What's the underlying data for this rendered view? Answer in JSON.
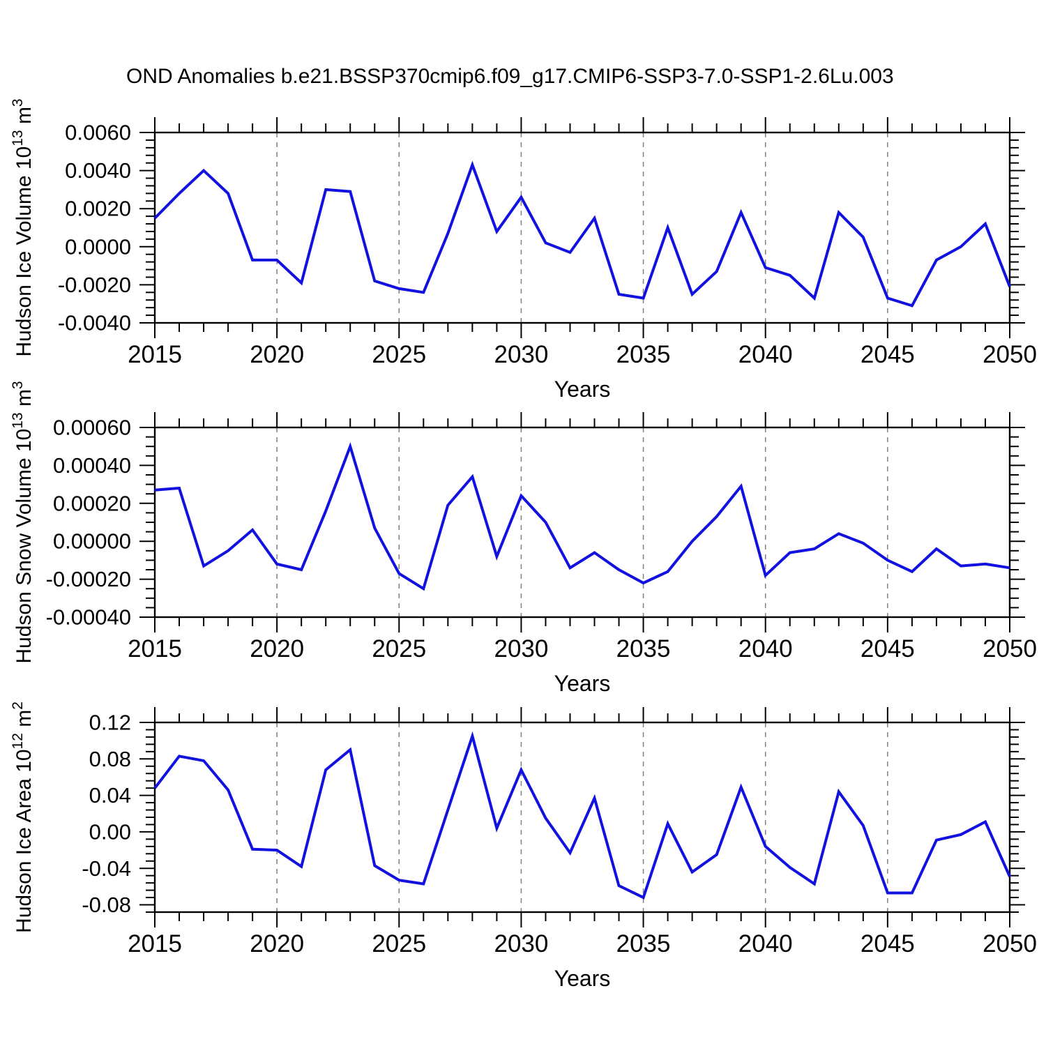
{
  "title": "OND Anomalies b.e21.BSSP370cmip6.f09_g17.CMIP6-SSP3-7.0-SSP1-2.6Lu.003",
  "colors": {
    "line": "#1212E0",
    "grid": "#7f7f7f",
    "axis": "#000000"
  },
  "xlabel": "Years",
  "chart_data": [
    {
      "type": "line",
      "name": "hudson-ice-volume",
      "ylabel_plain": "Hudson Ice Volume 10^13 m^3",
      "ylabel_parts": [
        {
          "t": "Hudson Ice Volume 10"
        },
        {
          "t": "13",
          "sup": true
        },
        {
          "t": " m"
        },
        {
          "t": "3",
          "sup": true
        }
      ],
      "xlabel": "Years",
      "xlim": [
        2015,
        2050
      ],
      "ylim": [
        -0.004,
        0.006
      ],
      "x_major_ticks": [
        2015,
        2020,
        2025,
        2030,
        2035,
        2040,
        2045,
        2050
      ],
      "gridline_years": [
        2020,
        2025,
        2030,
        2035,
        2040,
        2045
      ],
      "yticks": {
        "labels": [
          "0.0060",
          "0.0040",
          "0.0020",
          "0.0000",
          "-0.0020",
          "-0.0040"
        ],
        "values": [
          0.006,
          0.004,
          0.002,
          0.0,
          -0.002,
          -0.004
        ]
      },
      "y_minor_step": 0.0004,
      "x": [
        2015,
        2016,
        2017,
        2018,
        2019,
        2020,
        2021,
        2022,
        2023,
        2024,
        2025,
        2026,
        2027,
        2028,
        2029,
        2030,
        2031,
        2032,
        2033,
        2034,
        2035,
        2036,
        2037,
        2038,
        2039,
        2040,
        2041,
        2042,
        2043,
        2044,
        2045,
        2046,
        2047,
        2048,
        2049,
        2050
      ],
      "values": [
        0.0015,
        0.0028,
        0.004,
        0.0028,
        -0.0007,
        -0.0007,
        -0.0019,
        0.003,
        0.0029,
        -0.0018,
        -0.0022,
        -0.0024,
        0.0007,
        0.0043,
        0.0008,
        0.0026,
        0.0002,
        -0.0003,
        0.0015,
        -0.0025,
        -0.0027,
        0.001,
        -0.0025,
        -0.0013,
        0.0018,
        -0.0011,
        -0.0015,
        -0.0027,
        0.0018,
        0.0005,
        -0.0027,
        -0.0031,
        -0.0007,
        0.0,
        0.0012,
        -0.0021
      ]
    },
    {
      "type": "line",
      "name": "hudson-snow-volume",
      "ylabel_plain": "Hudson Snow Volume 10^13 m^3",
      "ylabel_parts": [
        {
          "t": "Hudson Snow Volume 10"
        },
        {
          "t": "13",
          "sup": true
        },
        {
          "t": " m"
        },
        {
          "t": "3",
          "sup": true
        }
      ],
      "xlabel": "Years",
      "xlim": [
        2015,
        2050
      ],
      "ylim": [
        -0.0004,
        0.0006
      ],
      "x_major_ticks": [
        2015,
        2020,
        2025,
        2030,
        2035,
        2040,
        2045,
        2050
      ],
      "gridline_years": [
        2020,
        2025,
        2030,
        2035,
        2040,
        2045
      ],
      "yticks": {
        "labels": [
          "0.00060",
          "0.00040",
          "0.00020",
          "0.00000",
          "-0.00020",
          "-0.00040"
        ],
        "values": [
          0.0006,
          0.0004,
          0.0002,
          0.0,
          -0.0002,
          -0.0004
        ]
      },
      "y_minor_step": 5e-05,
      "x": [
        2015,
        2016,
        2017,
        2018,
        2019,
        2020,
        2021,
        2022,
        2023,
        2024,
        2025,
        2026,
        2027,
        2028,
        2029,
        2030,
        2031,
        2032,
        2033,
        2034,
        2035,
        2036,
        2037,
        2038,
        2039,
        2040,
        2041,
        2042,
        2043,
        2044,
        2045,
        2046,
        2047,
        2048,
        2049,
        2050
      ],
      "values": [
        0.00027,
        0.00028,
        -0.00013,
        -5e-05,
        6e-05,
        -0.00012,
        -0.00015,
        0.00016,
        0.0005,
        7e-05,
        -0.00017,
        -0.00025,
        0.00019,
        0.00034,
        -8e-05,
        0.00024,
        0.0001,
        -0.00014,
        -6e-05,
        -0.00015,
        -0.00022,
        -0.00016,
        0.0,
        0.00013,
        0.00029,
        -0.00018,
        -6e-05,
        -4e-05,
        4e-05,
        -1e-05,
        -0.0001,
        -0.00016,
        -4e-05,
        -0.00013,
        -0.00012,
        -0.00014
      ]
    },
    {
      "type": "line",
      "name": "hudson-ice-area",
      "ylabel_plain": "Hudson Ice Area 10^12 m^2",
      "ylabel_parts": [
        {
          "t": "Hudson Ice Area 10"
        },
        {
          "t": "12",
          "sup": true
        },
        {
          "t": " m"
        },
        {
          "t": "2",
          "sup": true
        }
      ],
      "xlabel": "Years",
      "xlim": [
        2015,
        2050
      ],
      "ylim": [
        -0.088,
        0.12
      ],
      "x_major_ticks": [
        2015,
        2020,
        2025,
        2030,
        2035,
        2040,
        2045,
        2050
      ],
      "gridline_years": [
        2020,
        2025,
        2030,
        2035,
        2040,
        2045
      ],
      "yticks": {
        "labels": [
          "0.12",
          "0.08",
          "0.04",
          "0.00",
          "-0.04",
          "-0.08"
        ],
        "values": [
          0.12,
          0.08,
          0.04,
          0.0,
          -0.04,
          -0.08
        ]
      },
      "y_minor_step": 0.008,
      "x": [
        2015,
        2016,
        2017,
        2018,
        2019,
        2020,
        2021,
        2022,
        2023,
        2024,
        2025,
        2026,
        2027,
        2028,
        2029,
        2030,
        2031,
        2032,
        2033,
        2034,
        2035,
        2036,
        2037,
        2038,
        2039,
        2040,
        2041,
        2042,
        2043,
        2044,
        2045,
        2046,
        2047,
        2048,
        2049,
        2050
      ],
      "values": [
        0.048,
        0.083,
        0.078,
        0.046,
        -0.019,
        -0.02,
        -0.038,
        0.068,
        0.09,
        -0.037,
        -0.053,
        -0.057,
        0.024,
        0.105,
        0.004,
        0.068,
        0.015,
        -0.023,
        0.037,
        -0.059,
        -0.072,
        0.009,
        -0.044,
        -0.025,
        0.049,
        -0.016,
        -0.039,
        -0.057,
        0.044,
        0.007,
        -0.067,
        -0.067,
        -0.009,
        -0.003,
        0.011,
        -0.049
      ]
    }
  ]
}
